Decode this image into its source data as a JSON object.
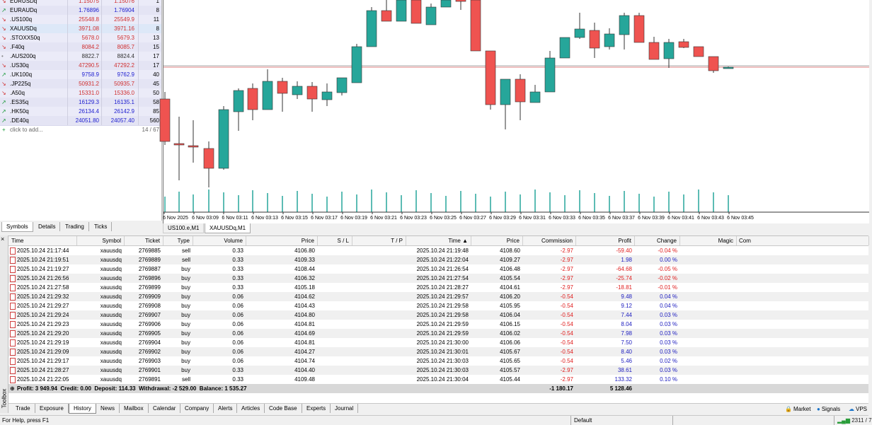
{
  "market_watch": {
    "rows": [
      {
        "symbol": "EURUSDq",
        "bid": "1.15075",
        "ask": "1.15076",
        "spread": "1",
        "color": "#d03030"
      },
      {
        "symbol": "EURAUDq",
        "bid": "1.76896",
        "ask": "1.76904",
        "spread": "8",
        "color": "#2020d0"
      },
      {
        "symbol": ".US100q",
        "bid": "25548.8",
        "ask": "25549.9",
        "spread": "11",
        "color": "#d03030"
      },
      {
        "symbol": "XAUUSDq",
        "bid": "3971.08",
        "ask": "3971.16",
        "spread": "8",
        "color": "#d03030"
      },
      {
        "symbol": ".STOXX50q",
        "bid": "5678.0",
        "ask": "5679.3",
        "spread": "13",
        "color": "#d03030"
      },
      {
        "symbol": ".F40q",
        "bid": "8084.2",
        "ask": "8085.7",
        "spread": "15",
        "color": "#d03030"
      },
      {
        "symbol": ".AUS200q",
        "bid": "8822.7",
        "ask": "8824.4",
        "spread": "17",
        "color": "#333333"
      },
      {
        "symbol": ".US30q",
        "bid": "47290.5",
        "ask": "47292.2",
        "spread": "17",
        "color": "#d03030"
      },
      {
        "symbol": ".UK100q",
        "bid": "9758.9",
        "ask": "9762.9",
        "spread": "40",
        "color": "#2020d0"
      },
      {
        "symbol": ".JP225q",
        "bid": "50931.2",
        "ask": "50935.7",
        "spread": "45",
        "color": "#d03030"
      },
      {
        "symbol": ".A50q",
        "bid": "15331.0",
        "ask": "15336.0",
        "spread": "50",
        "color": "#d03030"
      },
      {
        "symbol": ".ES35q",
        "bid": "16129.3",
        "ask": "16135.1",
        "spread": "58",
        "color": "#2020d0"
      },
      {
        "symbol": ".HK50q",
        "bid": "26134.4",
        "ask": "26142.9",
        "spread": "85",
        "color": "#2020d0"
      },
      {
        "symbol": ".DE40q",
        "bid": "24051.80",
        "ask": "24057.40",
        "spread": "560",
        "color": "#2020d0"
      }
    ],
    "add_label": "click to add...",
    "count": "14 / 67",
    "tabs": [
      "Symbols",
      "Details",
      "Trading",
      "Ticks"
    ]
  },
  "chart": {
    "time_labels": [
      "6 Nov 2025",
      "6 Nov 03:09",
      "6 Nov 03:11",
      "6 Nov 03:13",
      "6 Nov 03:15",
      "6 Nov 03:17",
      "6 Nov 03:19",
      "6 Nov 03:21",
      "6 Nov 03:23",
      "6 Nov 03:25",
      "6 Nov 03:27",
      "6 Nov 03:29",
      "6 Nov 03:31",
      "6 Nov 03:33",
      "6 Nov 03:35",
      "6 Nov 03:37",
      "6 Nov 03:39",
      "6 Nov 03:41",
      "6 Nov 03:43",
      "6 Nov 03:45"
    ],
    "tabs": [
      "US100.e,M1",
      "XAUUSDq,M1"
    ]
  },
  "history": {
    "columns": [
      "Time",
      "Symbol",
      "Ticket",
      "Type",
      "Volume",
      "Price",
      "S / L",
      "T / P",
      "Time ▲",
      "Price",
      "Commission",
      "Profit",
      "Change",
      "Magic",
      "Com"
    ],
    "rows": [
      [
        "2025.10.24 21:17:44",
        "xauusdq",
        "2769885",
        "sell",
        "0.33",
        "4106.80",
        "2025.10.24 21:19:48",
        "4108.60",
        "-2.97",
        "-59.40",
        "-0.04 %"
      ],
      [
        "2025.10.24 21:19:51",
        "xauusdq",
        "2769889",
        "sell",
        "0.33",
        "4109.33",
        "2025.10.24 21:22:04",
        "4109.27",
        "-2.97",
        "1.98",
        "0.00 %"
      ],
      [
        "2025.10.24 21:19:27",
        "xauusdq",
        "2769887",
        "buy",
        "0.33",
        "4108.44",
        "2025.10.24 21:26:54",
        "4106.48",
        "-2.97",
        "-64.68",
        "-0.05 %"
      ],
      [
        "2025.10.24 21:26:56",
        "xauusdq",
        "2769896",
        "buy",
        "0.33",
        "4106.32",
        "2025.10.24 21:27:54",
        "4105.54",
        "-2.97",
        "-25.74",
        "-0.02 %"
      ],
      [
        "2025.10.24 21:27:58",
        "xauusdq",
        "2769899",
        "buy",
        "0.33",
        "4105.18",
        "2025.10.24 21:28:27",
        "4104.61",
        "-2.97",
        "-18.81",
        "-0.01 %"
      ],
      [
        "2025.10.24 21:29:32",
        "xauusdq",
        "2769909",
        "buy",
        "0.06",
        "4104.62",
        "2025.10.24 21:29:57",
        "4106.20",
        "-0.54",
        "9.48",
        "0.04 %"
      ],
      [
        "2025.10.24 21:29:27",
        "xauusdq",
        "2769908",
        "buy",
        "0.06",
        "4104.43",
        "2025.10.24 21:29:58",
        "4105.95",
        "-0.54",
        "9.12",
        "0.04 %"
      ],
      [
        "2025.10.24 21:29:24",
        "xauusdq",
        "2769907",
        "buy",
        "0.06",
        "4104.80",
        "2025.10.24 21:29:58",
        "4106.04",
        "-0.54",
        "7.44",
        "0.03 %"
      ],
      [
        "2025.10.24 21:29:23",
        "xauusdq",
        "2769906",
        "buy",
        "0.06",
        "4104.81",
        "2025.10.24 21:29:59",
        "4106.15",
        "-0.54",
        "8.04",
        "0.03 %"
      ],
      [
        "2025.10.24 21:29:20",
        "xauusdq",
        "2769905",
        "buy",
        "0.06",
        "4104.69",
        "2025.10.24 21:29:59",
        "4106.02",
        "-0.54",
        "7.98",
        "0.03 %"
      ],
      [
        "2025.10.24 21:29:19",
        "xauusdq",
        "2769904",
        "buy",
        "0.06",
        "4104.81",
        "2025.10.24 21:30:00",
        "4106.06",
        "-0.54",
        "7.50",
        "0.03 %"
      ],
      [
        "2025.10.24 21:29:09",
        "xauusdq",
        "2769902",
        "buy",
        "0.06",
        "4104.27",
        "2025.10.24 21:30:01",
        "4105.67",
        "-0.54",
        "8.40",
        "0.03 %"
      ],
      [
        "2025.10.24 21:29:17",
        "xauusdq",
        "2769903",
        "buy",
        "0.06",
        "4104.74",
        "2025.10.24 21:30:03",
        "4105.65",
        "-0.54",
        "5.46",
        "0.02 %"
      ],
      [
        "2025.10.24 21:28:27",
        "xauusdq",
        "2769901",
        "buy",
        "0.33",
        "4104.40",
        "2025.10.24 21:30:03",
        "4105.57",
        "-2.97",
        "38.61",
        "0.03 %"
      ],
      [
        "2025.10.24 21:22:05",
        "xauusdq",
        "2769891",
        "sell",
        "0.33",
        "4109.48",
        "2025.10.24 21:30:04",
        "4105.44",
        "-2.97",
        "133.32",
        "0.10 %"
      ]
    ],
    "summary": {
      "text": "Profit: 3 949.94  Credit: 0.00  Deposit: 114.33  Withdrawal: -2 529.00  Balance: 1 535.27",
      "commission": "-1 180.17",
      "profit": "5 128.46"
    }
  },
  "toolbox_label": "Toolbox",
  "bottom_tabs": [
    "Trade",
    "Exposure",
    "History",
    "News",
    "Mailbox",
    "Calendar",
    "Company",
    "Alerts",
    "Articles",
    "Code Base",
    "Experts",
    "Journal"
  ],
  "right_buttons": [
    "Market",
    "Signals",
    "VPS"
  ],
  "status": {
    "help": "For Help, press F1",
    "profile": "Default",
    "traffic": "2311 / 7"
  }
}
